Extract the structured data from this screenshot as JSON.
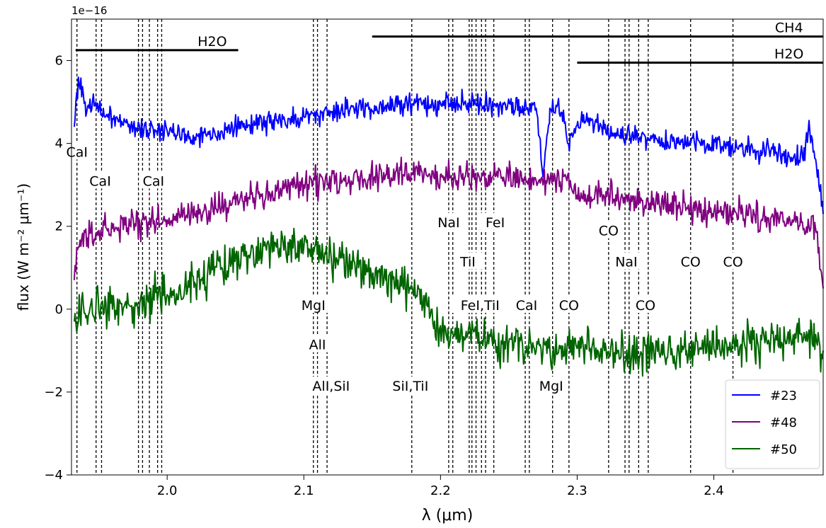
{
  "chart_data": {
    "type": "line",
    "xlabel": "λ (μm)",
    "ylabel": "flux (W m⁻² μm⁻¹)",
    "offset_text": "1e−16",
    "xlim": [
      1.93,
      2.48
    ],
    "ylim": [
      -4,
      7
    ],
    "x_ticks": [
      2.0,
      2.1,
      2.2,
      2.3,
      2.4
    ],
    "x_tick_labels": [
      "2.0",
      "2.1",
      "2.2",
      "2.3",
      "2.4"
    ],
    "y_ticks": [
      -4,
      -2,
      0,
      2,
      4,
      6
    ],
    "y_tick_labels": [
      "−4",
      "−2",
      "0",
      "2",
      "4",
      "6"
    ],
    "grid": false,
    "legend_position": "lower-right",
    "series": [
      {
        "name": "#23",
        "color": "#0000ff",
        "noise": 0.13,
        "x": [
          1.932,
          1.935,
          1.94,
          1.95,
          1.96,
          1.97,
          1.98,
          2.0,
          2.02,
          2.04,
          2.06,
          2.08,
          2.1,
          2.12,
          2.14,
          2.16,
          2.18,
          2.2,
          2.22,
          2.24,
          2.26,
          2.27,
          2.275,
          2.28,
          2.29,
          2.293,
          2.296,
          2.3,
          2.31,
          2.32,
          2.33,
          2.35,
          2.37,
          2.39,
          2.41,
          2.43,
          2.45,
          2.465,
          2.47,
          2.475,
          2.48
        ],
        "y": [
          4.4,
          5.6,
          5.0,
          4.8,
          4.6,
          4.5,
          4.35,
          4.3,
          4.15,
          4.3,
          4.45,
          4.55,
          4.65,
          4.75,
          4.85,
          4.92,
          4.96,
          4.98,
          4.97,
          4.95,
          4.9,
          4.85,
          3.2,
          4.85,
          4.8,
          4.0,
          4.25,
          4.45,
          4.55,
          4.35,
          4.2,
          4.15,
          4.05,
          4.0,
          3.95,
          3.85,
          3.75,
          3.65,
          4.4,
          3.5,
          2.3
        ]
      },
      {
        "name": "#48",
        "color": "#800080",
        "noise": 0.17,
        "x": [
          1.932,
          1.935,
          1.94,
          1.95,
          1.96,
          1.98,
          2.0,
          2.02,
          2.04,
          2.06,
          2.08,
          2.1,
          2.12,
          2.14,
          2.16,
          2.18,
          2.2,
          2.22,
          2.24,
          2.26,
          2.27,
          2.275,
          2.28,
          2.29,
          2.295,
          2.3,
          2.32,
          2.34,
          2.36,
          2.38,
          2.4,
          2.42,
          2.44,
          2.46,
          2.475,
          2.48
        ],
        "y": [
          0.7,
          1.5,
          1.85,
          1.9,
          1.95,
          2.05,
          2.15,
          2.3,
          2.5,
          2.7,
          2.85,
          3.0,
          3.1,
          3.2,
          3.25,
          3.25,
          3.25,
          3.2,
          3.2,
          3.15,
          3.1,
          3.0,
          3.1,
          3.2,
          3.1,
          2.75,
          2.7,
          2.6,
          2.55,
          2.45,
          2.35,
          2.3,
          2.2,
          2.1,
          1.85,
          0.5
        ]
      },
      {
        "name": "#50",
        "color": "#006400",
        "noise": 0.24,
        "x": [
          1.932,
          1.94,
          1.95,
          1.96,
          1.98,
          2.0,
          2.02,
          2.04,
          2.06,
          2.08,
          2.1,
          2.12,
          2.14,
          2.16,
          2.18,
          2.19,
          2.2,
          2.205,
          2.21,
          2.22,
          2.24,
          2.26,
          2.28,
          2.3,
          2.32,
          2.34,
          2.36,
          2.38,
          2.4,
          2.42,
          2.44,
          2.46,
          2.475,
          2.48
        ],
        "y": [
          -0.3,
          -0.1,
          -0.05,
          0.0,
          0.15,
          0.35,
          0.65,
          1.0,
          1.3,
          1.5,
          1.5,
          1.25,
          1.0,
          0.7,
          0.4,
          0.1,
          -0.4,
          -0.75,
          -0.65,
          -0.6,
          -0.75,
          -0.85,
          -0.95,
          -0.95,
          -1.0,
          -1.05,
          -1.05,
          -1.0,
          -0.95,
          -0.85,
          -0.75,
          -0.7,
          -0.75,
          -1.0
        ]
      }
    ],
    "line_markers": [
      1.934,
      1.948,
      1.952,
      1.979,
      1.982,
      1.987,
      1.993,
      1.996,
      2.107,
      2.11,
      2.117,
      2.179,
      2.206,
      2.209,
      2.221,
      2.223,
      2.226,
      2.23,
      2.233,
      2.239,
      2.262,
      2.265,
      2.282,
      2.294,
      2.323,
      2.335,
      2.338,
      2.345,
      2.352,
      2.383,
      2.414
    ],
    "line_labels": [
      {
        "text": "CaI",
        "x": 1.934,
        "y": 3.8
      },
      {
        "text": "CaI",
        "x": 1.951,
        "y": 3.1
      },
      {
        "text": "CaI",
        "x": 1.99,
        "y": 3.1
      },
      {
        "text": "MgI",
        "x": 2.107,
        "y": 0.1
      },
      {
        "text": "AlI",
        "x": 2.11,
        "y": -0.85
      },
      {
        "text": "AlI,SiI",
        "x": 2.12,
        "y": -1.85
      },
      {
        "text": "SiI,TiI",
        "x": 2.178,
        "y": -1.85
      },
      {
        "text": "NaI",
        "x": 2.206,
        "y": 2.1
      },
      {
        "text": "TiI",
        "x": 2.22,
        "y": 1.15
      },
      {
        "text": "FeI,TiI",
        "x": 2.229,
        "y": 0.1
      },
      {
        "text": "FeI",
        "x": 2.24,
        "y": 2.1
      },
      {
        "text": "CaI",
        "x": 2.263,
        "y": 0.1
      },
      {
        "text": "MgI",
        "x": 2.281,
        "y": -1.85
      },
      {
        "text": "CO",
        "x": 2.294,
        "y": 0.1
      },
      {
        "text": "CO",
        "x": 2.323,
        "y": 1.9
      },
      {
        "text": "NaI",
        "x": 2.336,
        "y": 1.15
      },
      {
        "text": "CO",
        "x": 2.35,
        "y": 0.1
      },
      {
        "text": "CO",
        "x": 2.383,
        "y": 1.15
      },
      {
        "text": "CO",
        "x": 2.414,
        "y": 1.15
      }
    ],
    "bands": [
      {
        "text": "H2O",
        "x0": 1.933,
        "x1": 2.052,
        "y": 6.25,
        "label_x": 2.033
      },
      {
        "text": "CH4",
        "x0": 2.15,
        "x1": 2.48,
        "y": 6.58,
        "label_x": 2.455
      },
      {
        "text": "H2O",
        "x0": 2.3,
        "x1": 2.48,
        "y": 5.95,
        "label_x": 2.455
      }
    ]
  }
}
